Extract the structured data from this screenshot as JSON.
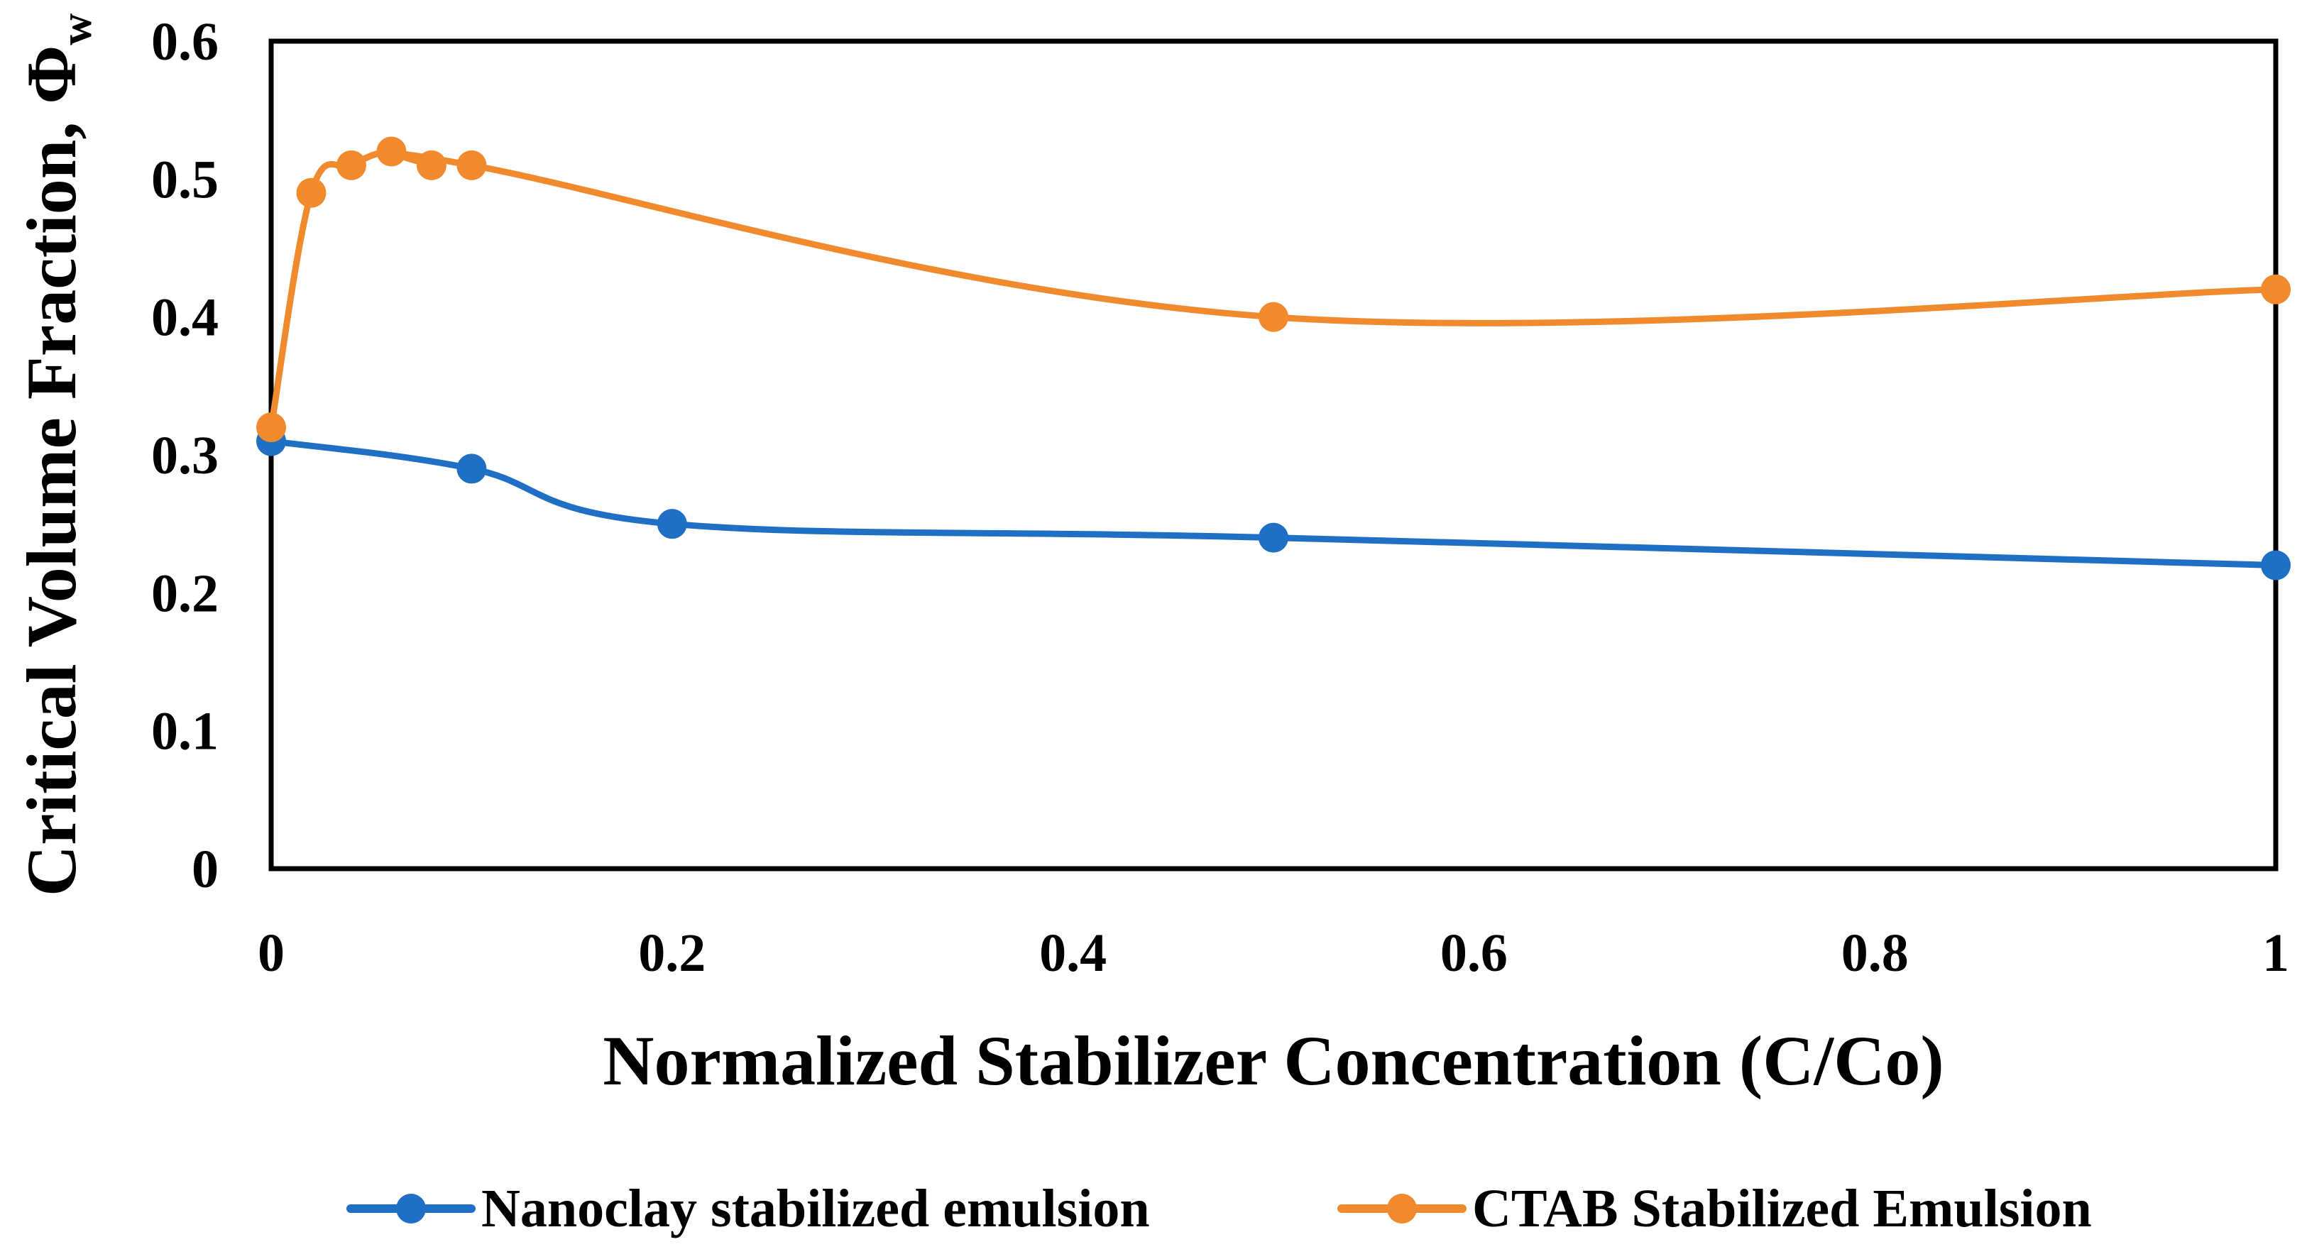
{
  "chart_data": {
    "type": "line",
    "title": "",
    "xlabel": "Normalized Stabilizer Concentration (C/Co)",
    "ylabel": "Critical Volume Fraction, ",
    "ylabel_symbol": "Φ",
    "ylabel_subscript": "w",
    "xlim": [
      0,
      1
    ],
    "ylim": [
      0,
      0.6
    ],
    "xticks": [
      0,
      0.2,
      0.4,
      0.6,
      0.8,
      1
    ],
    "xtick_labels": [
      "0",
      "0.2",
      "0.4",
      "0.6",
      "0.8",
      "1"
    ],
    "yticks": [
      0,
      0.1,
      0.2,
      0.3,
      0.4,
      0.5,
      0.6
    ],
    "ytick_labels": [
      "0",
      "0.1",
      "0.2",
      "0.3",
      "0.4",
      "0.5",
      "0.6"
    ],
    "grid": false,
    "legend_position": "bottom",
    "series": [
      {
        "name": "Nanoclay stabilized emulsion",
        "color": "#1f6fc5",
        "x": [
          0,
          0.1,
          0.2,
          0.5,
          1
        ],
        "y": [
          0.31,
          0.29,
          0.25,
          0.24,
          0.22
        ]
      },
      {
        "name": "CTAB Stabilized Emulsion",
        "color": "#f08a2d",
        "x": [
          0,
          0.02,
          0.04,
          0.06,
          0.08,
          0.1,
          0.5,
          1
        ],
        "y": [
          0.32,
          0.49,
          0.51,
          0.52,
          0.51,
          0.51,
          0.4,
          0.42
        ]
      }
    ]
  }
}
